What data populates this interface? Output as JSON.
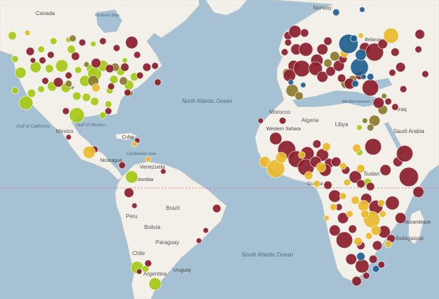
{
  "colors": {
    "ocean": "#a7c1d4",
    "land": "#f2f0e9",
    "equator": "#d97a7a",
    "maroon": "#8b1e2a",
    "lime": "#a5c916",
    "olive": "#8b7a2e",
    "yellow": "#e9b92a",
    "blue": "#1e5f8e"
  },
  "labels": {
    "canada": "Canada",
    "hudson_bay": "Hudson Bay",
    "north_atlantic": "North Atlantic Ocean",
    "south_atlantic": "South Atlantic Ocean",
    "gulf_california": "Gulf of California",
    "gulf_mexico": "Gulf of Mexico",
    "mexico": "Mexico",
    "cuba": "Cuba",
    "caribbean_sea": "Caribbean Sea",
    "nicaragua": "Nicaragua",
    "venezuela": "Venezuela",
    "colombia": "Colombia",
    "brazil": "Brazil",
    "peru": "Peru",
    "bolivia": "Bolivia",
    "paraguay": "Paraguay",
    "chile": "Chile",
    "argentina": "Argentina",
    "uruguay": "Uruguay",
    "norway": "Norway",
    "belarus": "Belarus",
    "morocco": "Morocco",
    "algeria": "Algeria",
    "libya": "Libya",
    "mediterranean": "Mediterranean Sea",
    "iraq": "Iraq",
    "saudi_arabia": "Saudi Arabia",
    "western_sahara": "Western Sahara",
    "sudan": "Sudan",
    "guinea": "Guinea",
    "madagascar": "Madagascar",
    "mozambique": "Mozambique",
    "state_partial": "State"
  },
  "markers": {
    "maroon": [
      [
        44,
        75,
        6
      ],
      [
        48,
        88,
        4
      ],
      [
        62,
        88,
        5
      ],
      [
        74,
        80,
        5
      ],
      [
        66,
        118,
        5
      ],
      [
        85,
        120,
        7
      ],
      [
        100,
        110,
        5
      ],
      [
        110,
        82,
        6
      ],
      [
        120,
        62,
        5
      ],
      [
        140,
        92,
        7
      ],
      [
        150,
        60,
        5
      ],
      [
        160,
        100,
        6
      ],
      [
        162,
        126,
        5
      ],
      [
        170,
        70,
        5
      ],
      [
        182,
        98,
        6
      ],
      [
        192,
        62,
        9
      ],
      [
        204,
        110,
        5
      ],
      [
        214,
        98,
        6
      ],
      [
        200,
        80,
        5
      ],
      [
        226,
        96,
        5
      ],
      [
        230,
        120,
        5
      ],
      [
        186,
        135,
        5
      ],
      [
        158,
        162,
        5
      ],
      [
        96,
        162,
        5
      ],
      [
        100,
        200,
        4
      ],
      [
        200,
        205,
        4
      ],
      [
        138,
        218,
        5
      ],
      [
        178,
        241,
        5
      ],
      [
        188,
        281,
        7
      ],
      [
        196,
        300,
        4
      ],
      [
        216,
        384,
        5
      ],
      [
        203,
        396,
        4
      ],
      [
        238,
        250,
        4
      ],
      [
        316,
        304,
        6
      ],
      [
        300,
        336,
        4
      ],
      [
        290,
        351,
        4
      ],
      [
        420,
        52,
        6
      ],
      [
        430,
        46,
        9
      ],
      [
        444,
        48,
        6
      ],
      [
        420,
        62,
        5
      ],
      [
        415,
        76,
        5
      ],
      [
        432,
        72,
        8
      ],
      [
        446,
        72,
        10
      ],
      [
        462,
        88,
        9
      ],
      [
        470,
        72,
        8
      ],
      [
        478,
        60,
        6
      ],
      [
        428,
        96,
        8
      ],
      [
        422,
        110,
        9
      ],
      [
        440,
        100,
        12
      ],
      [
        460,
        100,
        10
      ],
      [
        470,
        112,
        8
      ],
      [
        482,
        104,
        7
      ],
      [
        494,
        96,
        8
      ],
      [
        500,
        86,
        6
      ],
      [
        532,
        70,
        8
      ],
      [
        546,
        76,
        13
      ],
      [
        558,
        64,
        7
      ],
      [
        576,
        76,
        6
      ],
      [
        584,
        98,
        7
      ],
      [
        572,
        106,
        5
      ],
      [
        612,
        50,
        7
      ],
      [
        610,
        72,
        5
      ],
      [
        620,
        108,
        5
      ],
      [
        498,
        114,
        6
      ],
      [
        510,
        122,
        8
      ],
      [
        524,
        110,
        6
      ],
      [
        540,
        128,
        12
      ],
      [
        552,
        150,
        8
      ],
      [
        566,
        148,
        5
      ],
      [
        576,
        156,
        5
      ],
      [
        588,
        130,
        5
      ],
      [
        412,
        176,
        5
      ],
      [
        380,
        176,
        4
      ],
      [
        402,
        202,
        9
      ],
      [
        418,
        218,
        13
      ],
      [
        432,
        232,
        12
      ],
      [
        448,
        224,
        10
      ],
      [
        462,
        210,
        6
      ],
      [
        470,
        226,
        9
      ],
      [
        480,
        238,
        7
      ],
      [
        446,
        244,
        12
      ],
      [
        460,
        236,
        8
      ],
      [
        474,
        248,
        9
      ],
      [
        490,
        236,
        7
      ],
      [
        504,
        248,
        6
      ],
      [
        518,
        258,
        9
      ],
      [
        526,
        268,
        6
      ],
      [
        544,
        214,
        12
      ],
      [
        562,
        248,
        8
      ],
      [
        580,
        236,
        7
      ],
      [
        590,
        224,
        12
      ],
      [
        596,
        258,
        14
      ],
      [
        610,
        280,
        8
      ],
      [
        478,
        270,
        6
      ],
      [
        488,
        286,
        9
      ],
      [
        494,
        302,
        5
      ],
      [
        500,
        318,
        8
      ],
      [
        488,
        336,
        8
      ],
      [
        502,
        350,
        12
      ],
      [
        514,
        334,
        6
      ],
      [
        534,
        290,
        8
      ],
      [
        548,
        302,
        10
      ],
      [
        572,
        296,
        10
      ],
      [
        584,
        318,
        8
      ],
      [
        560,
        338,
        9
      ],
      [
        570,
        348,
        6
      ],
      [
        550,
        358,
        7
      ],
      [
        526,
        358,
        6
      ],
      [
        512,
        378,
        8
      ],
      [
        528,
        388,
        10
      ],
      [
        544,
        378,
        6
      ],
      [
        556,
        386,
        5
      ],
      [
        534,
        402,
        5
      ],
      [
        520,
        410,
        7
      ],
      [
        540,
        272,
        6
      ]
    ],
    "lime": [
      [
        18,
        52,
        6
      ],
      [
        22,
        86,
        5
      ],
      [
        30,
        106,
        8
      ],
      [
        38,
        150,
        10
      ],
      [
        46,
        136,
        6
      ],
      [
        52,
        98,
        8
      ],
      [
        60,
        72,
        5
      ],
      [
        72,
        100,
        6
      ],
      [
        76,
        126,
        7
      ],
      [
        90,
        96,
        9
      ],
      [
        96,
        128,
        7
      ],
      [
        104,
        72,
        6
      ],
      [
        114,
        102,
        5
      ],
      [
        124,
        118,
        8
      ],
      [
        112,
        140,
        6
      ],
      [
        112,
        168,
        11
      ],
      [
        132,
        100,
        6
      ],
      [
        138,
        108,
        10
      ],
      [
        150,
        96,
        8
      ],
      [
        160,
        132,
        5
      ],
      [
        166,
        116,
        6
      ],
      [
        176,
        104,
        6
      ],
      [
        188,
        124,
        7
      ],
      [
        196,
        112,
        6
      ],
      [
        126,
        142,
        6
      ],
      [
        138,
        148,
        6
      ],
      [
        158,
        152,
        5
      ],
      [
        22,
        132,
        5
      ],
      [
        60,
        130,
        5
      ],
      [
        78,
        60,
        5
      ],
      [
        100,
        58,
        4
      ],
      [
        150,
        168,
        5
      ],
      [
        136,
        64,
        4
      ],
      [
        182,
        88,
        4
      ],
      [
        192,
        258,
        9
      ],
      [
        200,
        390,
        9
      ],
      [
        226,
        414,
        9
      ],
      [
        212,
        392,
        5
      ],
      [
        524,
        222,
        5
      ],
      [
        536,
        266,
        6
      ],
      [
        470,
        242,
        5
      ],
      [
        524,
        186,
        4
      ]
    ],
    "olive": [
      [
        136,
        118,
        8
      ],
      [
        168,
        98,
        6
      ],
      [
        180,
        118,
        6
      ],
      [
        106,
        56,
        5
      ],
      [
        126,
        94,
        4
      ],
      [
        100,
        122,
        5
      ],
      [
        190,
        136,
        4
      ],
      [
        418,
        106,
        6
      ],
      [
        426,
        132,
        9
      ],
      [
        436,
        140,
        6
      ],
      [
        488,
        82,
        7
      ],
      [
        478,
        92,
        6
      ],
      [
        504,
        122,
        7
      ],
      [
        514,
        116,
        6
      ],
      [
        558,
        160,
        7
      ],
      [
        546,
        176,
        8
      ],
      [
        540,
        186,
        5
      ],
      [
        532,
        176,
        4
      ],
      [
        560,
        140,
        4
      ]
    ],
    "yellow": [
      [
        140,
        128,
        6
      ],
      [
        130,
        222,
        9
      ],
      [
        196,
        210,
        4
      ],
      [
        216,
        232,
        4
      ],
      [
        40,
        48,
        4
      ],
      [
        570,
        52,
        11
      ],
      [
        510,
        56,
        5
      ],
      [
        502,
        78,
        6
      ],
      [
        526,
        52,
        4
      ],
      [
        386,
        236,
        8
      ],
      [
        402,
        246,
        13
      ],
      [
        410,
        230,
        8
      ],
      [
        440,
        226,
        5
      ],
      [
        468,
        244,
        7
      ],
      [
        450,
        256,
        6
      ],
      [
        462,
        268,
        5
      ],
      [
        476,
        214,
        6
      ],
      [
        500,
        242,
        5
      ],
      [
        520,
        216,
        6
      ],
      [
        526,
        246,
        6
      ],
      [
        530,
        300,
        8
      ],
      [
        542,
        320,
        12
      ],
      [
        548,
        336,
        7
      ],
      [
        538,
        344,
        5
      ],
      [
        518,
        292,
        6
      ],
      [
        510,
        312,
        5
      ],
      [
        522,
        352,
        6
      ],
      [
        532,
        312,
        6
      ],
      [
        486,
        302,
        5
      ],
      [
        476,
        318,
        4
      ],
      [
        558,
        312,
        5
      ],
      [
        566,
        356,
        5
      ],
      [
        556,
        296,
        5
      ],
      [
        500,
        286,
        5
      ],
      [
        506,
        266,
        5
      ]
    ],
    "blue": [
      [
        490,
        18,
        5
      ],
      [
        528,
        14,
        4
      ],
      [
        508,
        64,
        14
      ],
      [
        524,
        98,
        13
      ],
      [
        526,
        80,
        8
      ],
      [
        540,
        112,
        5
      ],
      [
        424,
        120,
        4
      ],
      [
        442,
        124,
        4
      ],
      [
        516,
        56,
        5
      ],
      [
        518,
        122,
        5
      ],
      [
        526,
        374,
        6
      ],
      [
        548,
        392,
        5
      ],
      [
        530,
        112,
        4
      ]
    ]
  }
}
